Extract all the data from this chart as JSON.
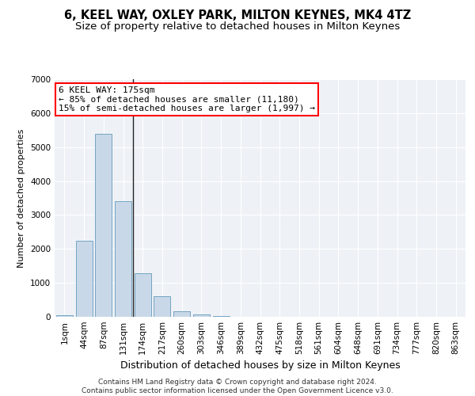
{
  "title": "6, KEEL WAY, OXLEY PARK, MILTON KEYNES, MK4 4TZ",
  "subtitle": "Size of property relative to detached houses in Milton Keynes",
  "xlabel": "Distribution of detached houses by size in Milton Keynes",
  "ylabel": "Number of detached properties",
  "bar_color": "#c8d8e8",
  "bar_edge_color": "#6699bb",
  "background_color": "#eef2f7",
  "annotation_text": "6 KEEL WAY: 175sqm\n← 85% of detached houses are smaller (11,180)\n15% of semi-detached houses are larger (1,997) →",
  "vline_color": "#222222",
  "categories": [
    "1sqm",
    "44sqm",
    "87sqm",
    "131sqm",
    "174sqm",
    "217sqm",
    "260sqm",
    "303sqm",
    "346sqm",
    "389sqm",
    "432sqm",
    "475sqm",
    "518sqm",
    "561sqm",
    "604sqm",
    "648sqm",
    "691sqm",
    "734sqm",
    "777sqm",
    "820sqm",
    "863sqm"
  ],
  "values": [
    50,
    2250,
    5400,
    3400,
    1280,
    600,
    175,
    75,
    20,
    5,
    2,
    1,
    0,
    0,
    0,
    0,
    0,
    0,
    0,
    0,
    0
  ],
  "ylim": [
    0,
    7000
  ],
  "yticks": [
    0,
    1000,
    2000,
    3000,
    4000,
    5000,
    6000,
    7000
  ],
  "footer": "Contains HM Land Registry data © Crown copyright and database right 2024.\nContains public sector information licensed under the Open Government Licence v3.0.",
  "title_fontsize": 10.5,
  "subtitle_fontsize": 9.5,
  "footer_fontsize": 6.5,
  "ylabel_fontsize": 8,
  "xlabel_fontsize": 9,
  "tick_fontsize": 7.5,
  "annot_fontsize": 8
}
